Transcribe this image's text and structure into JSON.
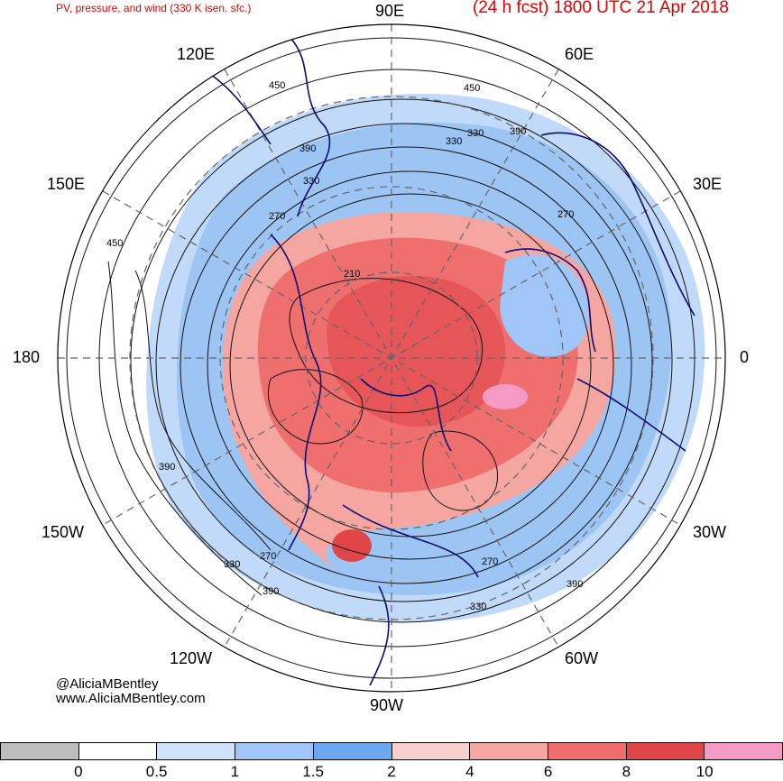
{
  "header": {
    "left_title": "PV, pressure, and wind (330 K isen. sfc.)",
    "right_title": "(24 h fcst) 1800 UTC 21 Apr 2018"
  },
  "longitude_labels": {
    "lon_90e": "90E",
    "lon_120e": "120E",
    "lon_60e": "60E",
    "lon_150e": "150E",
    "lon_30e": "30E",
    "lon_180": "180",
    "lon_0": "0",
    "lon_150w": "150W",
    "lon_30w": "30W",
    "lon_120w": "120W",
    "lon_60w": "60W",
    "lon_90w": "90W"
  },
  "contour_labels": {
    "c450_a": "450",
    "c450_b": "450",
    "c450_c": "450",
    "c390_a": "390",
    "c390_b": "390",
    "c390_c": "390",
    "c390_d": "390",
    "c390_e": "390",
    "c330_a": "330",
    "c330_b": "330",
    "c330_c": "330",
    "c330_d": "330",
    "c330_e": "330",
    "c270_a": "270",
    "c270_b": "270",
    "c270_c": "270",
    "c270_d": "270",
    "c210_a": "210"
  },
  "credits": {
    "handle": "@AliciaMBentley",
    "website": "www.AliciaMBentley.com"
  },
  "colorbar": {
    "colors": [
      "#bdbdbd",
      "#ffffff",
      "#cfe2fb",
      "#9fc6f7",
      "#6aa8f0",
      "#f9d0cc",
      "#f7a7a2",
      "#f06d6e",
      "#e04548",
      "#f49ac4"
    ],
    "tick_labels": [
      "0",
      "0.5",
      "1",
      "1.5",
      "2",
      "4",
      "6",
      "8",
      "10"
    ]
  }
}
